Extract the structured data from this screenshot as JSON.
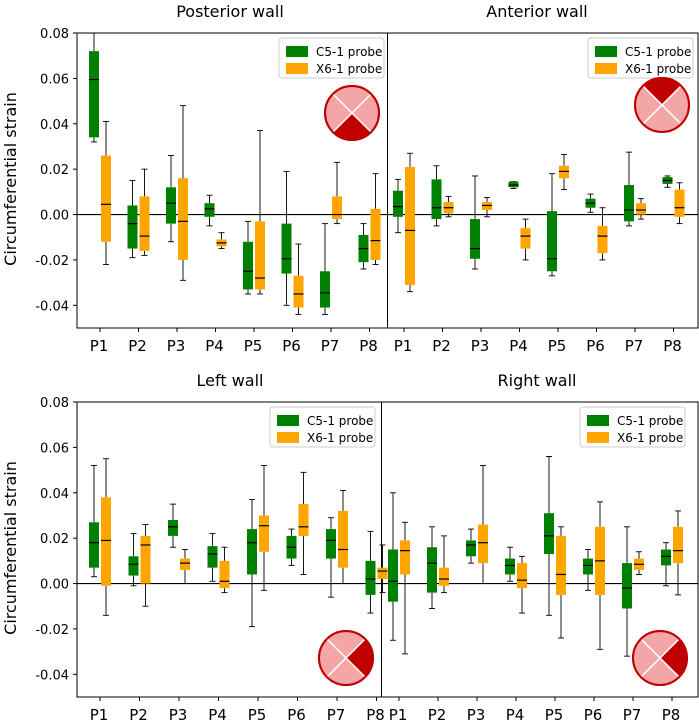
{
  "colors": {
    "c5": "#008000",
    "x6": "#FFA500",
    "ref_line": "#000000",
    "whisker": "#000000",
    "median": "#000000",
    "icon_fill": "#F4A6A6",
    "icon_dark": "#C00000",
    "icon_ring": "#C00000"
  },
  "chart_data": [
    {
      "id": "posterior",
      "type": "boxplot",
      "title": "Posterior wall",
      "ylabel": "Circumferential strain",
      "ylim": [
        -0.05,
        0.08
      ],
      "yticks": [
        -0.04,
        -0.02,
        0.0,
        0.02,
        0.04,
        0.06,
        0.08
      ],
      "ytick_labels": [
        "-0.04",
        "-0.02",
        "0.00",
        "0.02",
        "0.04",
        "0.06",
        "0.08"
      ],
      "categories": [
        "P1",
        "P2",
        "P3",
        "P4",
        "P5",
        "P6",
        "P7",
        "P8"
      ],
      "legend": [
        "C5-1 probe",
        "X6-1 probe"
      ],
      "legend_position": "top-right",
      "icon": {
        "dark_quadrant": "bottom"
      },
      "series": [
        {
          "name": "C5-1 probe",
          "boxes": [
            {
              "whislo": 0.032,
              "q1": 0.034,
              "med": 0.0595,
              "q3": 0.072,
              "whishi": 0.08
            },
            {
              "whislo": -0.019,
              "q1": -0.015,
              "med": -0.004,
              "q3": 0.004,
              "whishi": 0.015
            },
            {
              "whislo": -0.012,
              "q1": -0.004,
              "med": 0.005,
              "q3": 0.012,
              "whishi": 0.026
            },
            {
              "whislo": -0.005,
              "q1": -0.001,
              "med": 0.0025,
              "q3": 0.005,
              "whishi": 0.0085
            },
            {
              "whislo": -0.035,
              "q1": -0.033,
              "med": -0.025,
              "q3": -0.012,
              "whishi": -0.003
            },
            {
              "whislo": -0.04,
              "q1": -0.026,
              "med": -0.0195,
              "q3": -0.004,
              "whishi": 0.019
            },
            {
              "whislo": -0.044,
              "q1": -0.041,
              "med": -0.0345,
              "q3": -0.025,
              "whishi": -0.004
            },
            {
              "whislo": -0.024,
              "q1": -0.021,
              "med": -0.015,
              "q3": -0.009,
              "whishi": -0.004
            }
          ]
        },
        {
          "name": "X6-1 probe",
          "boxes": [
            {
              "whislo": -0.022,
              "q1": -0.012,
              "med": 0.0045,
              "q3": 0.026,
              "whishi": 0.041
            },
            {
              "whislo": -0.018,
              "q1": -0.016,
              "med": -0.0095,
              "q3": 0.008,
              "whishi": 0.02
            },
            {
              "whislo": -0.029,
              "q1": -0.02,
              "med": -0.003,
              "q3": 0.016,
              "whishi": 0.048
            },
            {
              "whislo": -0.015,
              "q1": -0.014,
              "med": -0.0125,
              "q3": -0.011,
              "whishi": -0.008
            },
            {
              "whislo": -0.035,
              "q1": -0.033,
              "med": -0.028,
              "q3": -0.003,
              "whishi": 0.037
            },
            {
              "whislo": -0.044,
              "q1": -0.041,
              "med": -0.035,
              "q3": -0.027,
              "whishi": -0.013
            },
            {
              "whislo": -0.004,
              "q1": -0.002,
              "med": 0.0,
              "q3": 0.008,
              "whishi": 0.023
            },
            {
              "whislo": -0.022,
              "q1": -0.02,
              "med": -0.0115,
              "q3": 0.0025,
              "whishi": 0.018
            }
          ]
        }
      ]
    },
    {
      "id": "anterior",
      "type": "boxplot",
      "title": "Anterior wall",
      "ylabel": "",
      "ylim": [
        -0.05,
        0.08
      ],
      "categories": [
        "P1",
        "P2",
        "P3",
        "P4",
        "P5",
        "P6",
        "P7",
        "P8"
      ],
      "legend": [
        "C5-1 probe",
        "X6-1 probe"
      ],
      "legend_position": "top-right",
      "icon": {
        "dark_quadrant": "top"
      },
      "series": [
        {
          "name": "C5-1 probe",
          "boxes": [
            {
              "whislo": -0.008,
              "q1": -0.001,
              "med": 0.0035,
              "q3": 0.0105,
              "whishi": 0.0155
            },
            {
              "whislo": -0.005,
              "q1": -0.002,
              "med": 0.003,
              "q3": 0.0155,
              "whishi": 0.0215
            },
            {
              "whislo": -0.024,
              "q1": -0.0195,
              "med": -0.015,
              "q3": -0.002,
              "whishi": 0.017
            },
            {
              "whislo": 0.0115,
              "q1": 0.012,
              "med": 0.013,
              "q3": 0.0145,
              "whishi": 0.0145
            },
            {
              "whislo": -0.027,
              "q1": -0.025,
              "med": -0.0195,
              "q3": 0.0015,
              "whishi": 0.018
            },
            {
              "whislo": 0.001,
              "q1": 0.003,
              "med": 0.005,
              "q3": 0.007,
              "whishi": 0.009
            },
            {
              "whislo": -0.005,
              "q1": -0.003,
              "med": 0.002,
              "q3": 0.013,
              "whishi": 0.0275
            },
            {
              "whislo": 0.012,
              "q1": 0.0135,
              "med": 0.015,
              "q3": 0.0165,
              "whishi": 0.017
            }
          ]
        },
        {
          "name": "X6-1 probe",
          "boxes": [
            {
              "whislo": -0.034,
              "q1": -0.031,
              "med": -0.007,
              "q3": 0.021,
              "whishi": 0.027
            },
            {
              "whislo": -0.001,
              "q1": 0.0005,
              "med": 0.003,
              "q3": 0.0055,
              "whishi": 0.008
            },
            {
              "whislo": -0.001,
              "q1": 0.002,
              "med": 0.004,
              "q3": 0.0055,
              "whishi": 0.0075
            },
            {
              "whislo": -0.02,
              "q1": -0.015,
              "med": -0.0095,
              "q3": -0.006,
              "whishi": -0.002
            },
            {
              "whislo": 0.011,
              "q1": 0.016,
              "med": 0.019,
              "q3": 0.0215,
              "whishi": 0.0265
            },
            {
              "whislo": -0.02,
              "q1": -0.017,
              "med": -0.0095,
              "q3": -0.005,
              "whishi": 0.003
            },
            {
              "whislo": -0.002,
              "q1": 0.0,
              "med": 0.002,
              "q3": 0.005,
              "whishi": 0.007
            },
            {
              "whislo": -0.004,
              "q1": -0.001,
              "med": 0.003,
              "q3": 0.011,
              "whishi": 0.014
            }
          ]
        }
      ]
    },
    {
      "id": "left",
      "type": "boxplot",
      "title": "Left wall",
      "ylabel": "Circumferential strain",
      "ylim": [
        -0.05,
        0.08
      ],
      "yticks": [
        -0.04,
        -0.02,
        0.0,
        0.02,
        0.04,
        0.06,
        0.08
      ],
      "ytick_labels": [
        "-0.04",
        "-0.02",
        "0.00",
        "0.02",
        "0.04",
        "0.06",
        "0.08"
      ],
      "categories": [
        "P1",
        "P2",
        "P3",
        "P4",
        "P5",
        "P6",
        "P7",
        "P8"
      ],
      "legend": [
        "C5-1 probe",
        "X6-1 probe"
      ],
      "legend_position": "top-right",
      "icon": {
        "dark_quadrant": "right"
      },
      "series": [
        {
          "name": "C5-1 probe",
          "boxes": [
            {
              "whislo": 0.003,
              "q1": 0.007,
              "med": 0.018,
              "q3": 0.027,
              "whishi": 0.052
            },
            {
              "whislo": -0.001,
              "q1": 0.0035,
              "med": 0.0085,
              "q3": 0.012,
              "whishi": 0.022
            },
            {
              "whislo": 0.016,
              "q1": 0.021,
              "med": 0.025,
              "q3": 0.028,
              "whishi": 0.035
            },
            {
              "whislo": 0.001,
              "q1": 0.007,
              "med": 0.013,
              "q3": 0.0165,
              "whishi": 0.022
            },
            {
              "whislo": -0.019,
              "q1": 0.004,
              "med": 0.018,
              "q3": 0.024,
              "whishi": 0.037
            },
            {
              "whislo": 0.008,
              "q1": 0.011,
              "med": 0.016,
              "q3": 0.021,
              "whishi": 0.024
            },
            {
              "whislo": -0.006,
              "q1": 0.011,
              "med": 0.019,
              "q3": 0.024,
              "whishi": 0.029
            },
            {
              "whislo": -0.013,
              "q1": -0.005,
              "med": 0.002,
              "q3": 0.01,
              "whishi": 0.023
            }
          ]
        },
        {
          "name": "X6-1 probe",
          "boxes": [
            {
              "whislo": -0.014,
              "q1": -0.001,
              "med": 0.019,
              "q3": 0.038,
              "whishi": 0.055
            },
            {
              "whislo": -0.01,
              "q1": 0.0,
              "med": 0.017,
              "q3": 0.021,
              "whishi": 0.026
            },
            {
              "whislo": 0.0,
              "q1": 0.006,
              "med": 0.009,
              "q3": 0.011,
              "whishi": 0.015
            },
            {
              "whislo": -0.004,
              "q1": -0.002,
              "med": 0.001,
              "q3": 0.01,
              "whishi": 0.016
            },
            {
              "whislo": -0.003,
              "q1": 0.014,
              "med": 0.0255,
              "q3": 0.03,
              "whishi": 0.052
            },
            {
              "whislo": 0.004,
              "q1": 0.021,
              "med": 0.025,
              "q3": 0.035,
              "whishi": 0.049
            },
            {
              "whislo": 0.0,
              "q1": 0.007,
              "med": 0.015,
              "q3": 0.032,
              "whishi": 0.041
            },
            {
              "whislo": -0.004,
              "q1": 0.002,
              "med": 0.0055,
              "q3": 0.007,
              "whishi": 0.017
            }
          ]
        }
      ]
    },
    {
      "id": "right",
      "type": "boxplot",
      "title": "Right wall",
      "ylabel": "",
      "ylim": [
        -0.05,
        0.08
      ],
      "categories": [
        "P1",
        "P2",
        "P3",
        "P4",
        "P5",
        "P6",
        "P7",
        "P8"
      ],
      "legend": [
        "C5-1 probe",
        "X6-1 probe"
      ],
      "legend_position": "top-right",
      "icon": {
        "dark_quadrant": "right"
      },
      "series": [
        {
          "name": "C5-1 probe",
          "boxes": [
            {
              "whislo": -0.025,
              "q1": -0.008,
              "med": 0.001,
              "q3": 0.015,
              "whishi": 0.04
            },
            {
              "whislo": -0.011,
              "q1": -0.004,
              "med": 0.009,
              "q3": 0.016,
              "whishi": 0.025
            },
            {
              "whislo": 0.009,
              "q1": 0.012,
              "med": 0.017,
              "q3": 0.019,
              "whishi": 0.024
            },
            {
              "whislo": 0.001,
              "q1": 0.004,
              "med": 0.008,
              "q3": 0.011,
              "whishi": 0.016
            },
            {
              "whislo": -0.014,
              "q1": 0.013,
              "med": 0.021,
              "q3": 0.031,
              "whishi": 0.056
            },
            {
              "whislo": -0.003,
              "q1": 0.004,
              "med": 0.008,
              "q3": 0.011,
              "whishi": 0.015
            },
            {
              "whislo": -0.032,
              "q1": -0.011,
              "med": -0.002,
              "q3": 0.009,
              "whishi": 0.025
            },
            {
              "whislo": -0.001,
              "q1": 0.008,
              "med": 0.012,
              "q3": 0.015,
              "whishi": 0.018
            }
          ]
        },
        {
          "name": "X6-1 probe",
          "boxes": [
            {
              "whislo": -0.031,
              "q1": 0.004,
              "med": 0.0145,
              "q3": 0.019,
              "whishi": 0.027
            },
            {
              "whislo": -0.004,
              "q1": -0.001,
              "med": 0.002,
              "q3": 0.007,
              "whishi": 0.021
            },
            {
              "whislo": 0.0,
              "q1": 0.009,
              "med": 0.018,
              "q3": 0.026,
              "whishi": 0.052
            },
            {
              "whislo": -0.013,
              "q1": -0.002,
              "med": 0.0015,
              "q3": 0.009,
              "whishi": 0.012
            },
            {
              "whislo": -0.024,
              "q1": -0.005,
              "med": 0.004,
              "q3": 0.021,
              "whishi": 0.025
            },
            {
              "whislo": -0.029,
              "q1": -0.005,
              "med": 0.01,
              "q3": 0.025,
              "whishi": 0.036
            },
            {
              "whislo": 0.004,
              "q1": 0.006,
              "med": 0.0085,
              "q3": 0.011,
              "whishi": 0.014
            },
            {
              "whislo": -0.005,
              "q1": 0.009,
              "med": 0.0145,
              "q3": 0.025,
              "whishi": 0.032
            }
          ]
        }
      ]
    }
  ]
}
